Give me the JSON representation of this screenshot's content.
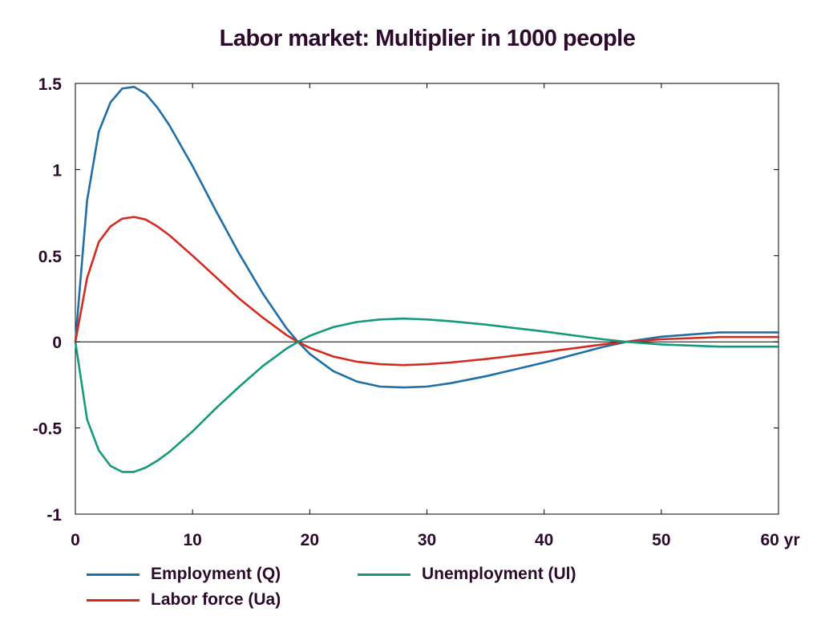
{
  "chart_data": {
    "type": "line",
    "title": "Labor market: Multiplier in 1000 people",
    "xlabel": "",
    "ylabel": "",
    "xlim": [
      0,
      60
    ],
    "ylim": [
      -1,
      1.5
    ],
    "x_ticks": [
      "0",
      "10",
      "20",
      "30",
      "40",
      "50",
      "60 yr"
    ],
    "y_ticks": [
      "1.5",
      "1",
      "0.5",
      "0",
      "-0.5",
      "-1"
    ],
    "x_tick_values": [
      0,
      10,
      20,
      30,
      40,
      50,
      60
    ],
    "y_tick_values": [
      1.5,
      1,
      0.5,
      0,
      -0.5,
      -1
    ],
    "grid": false,
    "legend_position": "bottom",
    "x": [
      0,
      1,
      2,
      3,
      4,
      5,
      6,
      7,
      8,
      10,
      12,
      14,
      16,
      18,
      19,
      20,
      22,
      24,
      26,
      28,
      30,
      32,
      35,
      40,
      45,
      47,
      50,
      55,
      60
    ],
    "series": [
      {
        "name": "Employment (Q)",
        "color": "#1f6fa6",
        "values": [
          0,
          0.82,
          1.22,
          1.39,
          1.47,
          1.48,
          1.44,
          1.36,
          1.26,
          1.02,
          0.76,
          0.51,
          0.28,
          0.08,
          0.0,
          -0.07,
          -0.17,
          -0.23,
          -0.26,
          -0.265,
          -0.26,
          -0.24,
          -0.2,
          -0.12,
          -0.03,
          0.0,
          0.03,
          0.055,
          0.055
        ]
      },
      {
        "name": "Labor force (Ua)",
        "color": "#d42a20",
        "values": [
          0,
          0.37,
          0.58,
          0.67,
          0.715,
          0.725,
          0.71,
          0.67,
          0.62,
          0.5,
          0.375,
          0.25,
          0.14,
          0.04,
          0.0,
          -0.035,
          -0.085,
          -0.115,
          -0.13,
          -0.135,
          -0.13,
          -0.12,
          -0.1,
          -0.06,
          -0.015,
          0.0,
          0.015,
          0.028,
          0.028
        ]
      },
      {
        "name": "Unemployment (Ul)",
        "color": "#14997a",
        "values": [
          0,
          -0.45,
          -0.63,
          -0.72,
          -0.755,
          -0.755,
          -0.73,
          -0.69,
          -0.64,
          -0.52,
          -0.385,
          -0.26,
          -0.14,
          -0.04,
          0.0,
          0.035,
          0.085,
          0.115,
          0.13,
          0.135,
          0.13,
          0.12,
          0.1,
          0.06,
          0.015,
          0.0,
          -0.015,
          -0.028,
          -0.028
        ]
      }
    ]
  }
}
